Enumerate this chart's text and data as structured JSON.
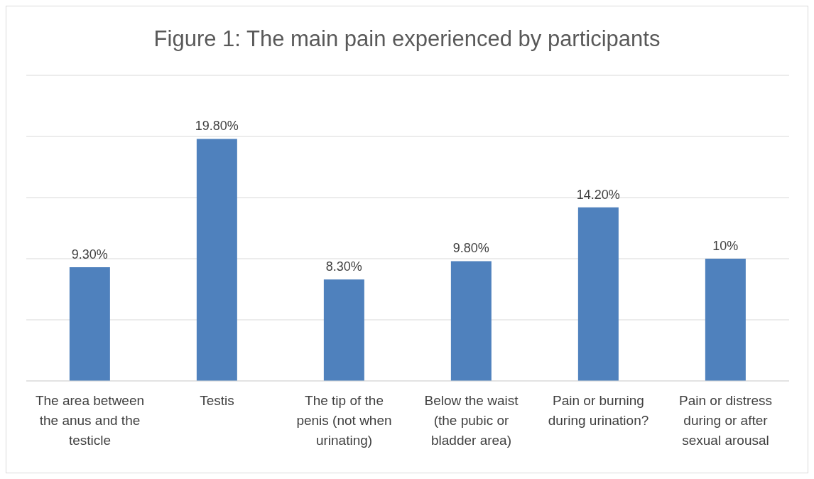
{
  "chart_data": {
    "type": "bar",
    "title": "Figure 1: The main pain experienced by participants",
    "categories": [
      "The area between the anus and the testicle",
      "Testis",
      "The tip of the penis (not when urinating)",
      "Below the waist (the pubic or bladder area)",
      "Pain or burning during urination?",
      "Pain or distress during or after sexual arousal"
    ],
    "values": [
      9.3,
      19.8,
      8.3,
      9.8,
      14.2,
      10
    ],
    "value_labels": [
      "9.30%",
      "19.80%",
      "8.30%",
      "9.80%",
      "14.20%",
      "10%"
    ],
    "color": "#4f81bd",
    "ylim": [
      0,
      25
    ],
    "grid": "y",
    "tick_labels": "x",
    "legend": false
  }
}
